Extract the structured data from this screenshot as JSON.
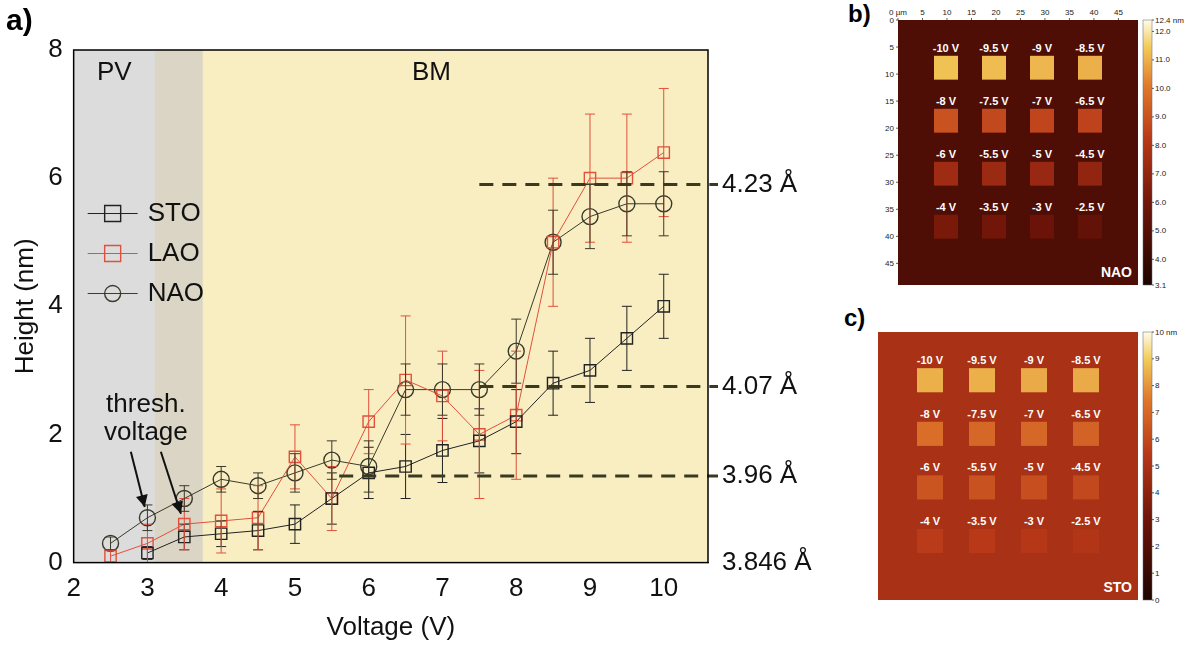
{
  "chart_data": [
    {
      "panel": "a)",
      "type": "line",
      "x_label": "Voltage (V)",
      "y_label": "Height (nm)",
      "x": [
        2.5,
        3,
        3.5,
        4,
        4.5,
        5,
        5.5,
        6,
        6.5,
        7,
        7.5,
        8,
        8.5,
        9,
        9.5,
        10
      ],
      "series": [
        {
          "name": "STO",
          "color": "#222222",
          "marker": "square",
          "values": [
            null,
            0.15,
            0.4,
            0.45,
            0.5,
            0.6,
            1.0,
            1.4,
            1.5,
            1.75,
            1.9,
            2.2,
            2.8,
            3.0,
            3.5,
            4.0
          ],
          "errors": [
            null,
            0.1,
            0.2,
            0.2,
            0.3,
            0.3,
            0.4,
            0.4,
            0.5,
            0.5,
            0.5,
            0.5,
            0.5,
            0.5,
            0.5,
            0.5
          ]
        },
        {
          "name": "LAO",
          "color": "#e0503c",
          "marker": "square",
          "values": [
            0.1,
            0.3,
            0.6,
            0.65,
            0.7,
            1.65,
            1.0,
            2.2,
            2.85,
            2.6,
            2.0,
            2.3,
            5.0,
            6.0,
            6.0,
            6.4
          ],
          "errors": [
            0.1,
            0.3,
            0.4,
            0.5,
            0.5,
            0.5,
            0.5,
            0.5,
            1.0,
            0.7,
            1.0,
            1.0,
            1.0,
            1.0,
            1.0,
            1.0
          ]
        },
        {
          "name": "NAO",
          "color": "#3a3a2a",
          "marker": "circle",
          "values": [
            0.3,
            0.7,
            1.0,
            1.3,
            1.2,
            1.4,
            1.6,
            1.5,
            2.7,
            2.7,
            2.7,
            3.3,
            5.0,
            5.4,
            5.6,
            5.6
          ],
          "errors": [
            0.1,
            0.2,
            0.2,
            0.2,
            0.2,
            0.3,
            0.3,
            0.4,
            0.4,
            0.4,
            0.4,
            0.5,
            0.5,
            0.5,
            0.5,
            0.5
          ]
        }
      ],
      "xlim": [
        2,
        10.6
      ],
      "xticks": [
        2,
        3,
        4,
        5,
        6,
        7,
        8,
        9,
        10
      ],
      "ylim": [
        0,
        8
      ],
      "yticks": [
        0,
        2,
        4,
        6,
        8
      ],
      "grid": false,
      "legend": "upper left",
      "regions": [
        {
          "label": "PV",
          "range": [
            2,
            3.75
          ],
          "color": "#c4c4c4"
        },
        {
          "label": "BM",
          "range": [
            3.1,
            10.6
          ],
          "color": "#f5e39a"
        }
      ],
      "reference_lines": [
        {
          "label": "4.23 Å",
          "value": 5.9,
          "from": 7.5,
          "line_style": "dashed"
        },
        {
          "label": "4.07 Å",
          "value": 2.75,
          "from": 7.5,
          "line_style": "dashed"
        },
        {
          "label": "3.96 Å",
          "value": 1.35,
          "from": 5.6,
          "line_style": "dashed"
        },
        {
          "label": "3.846 Å",
          "value": 0
        }
      ],
      "annotations": [
        {
          "text": "thresh. voltage",
          "points": [
            {
              "series": "NAO",
              "x": 3
            },
            {
              "series": "LAO",
              "x": 3.5
            }
          ]
        }
      ]
    },
    {
      "panel": "b)",
      "type": "heatmap",
      "label": "NAO",
      "xlim": [
        0,
        49
      ],
      "xticks": [
        {
          "value": 0,
          "label": "0 µm"
        },
        5,
        10,
        15,
        20,
        25,
        30,
        35,
        40,
        45
      ],
      "ylim": [
        0,
        49
      ],
      "yticks": [
        0,
        5,
        10,
        15,
        20,
        25,
        30,
        35,
        40,
        45
      ],
      "background": 4.8,
      "cells": {
        "labels": [
          [
            "-10 V",
            "-9.5 V",
            "-9 V",
            "-8.5 V"
          ],
          [
            "-8 V",
            "-7.5 V",
            "-7 V",
            "-6.5 V"
          ],
          [
            "-6 V",
            "-5.5 V",
            "-5 V",
            "-4.5 V"
          ],
          [
            "-4 V",
            "-3.5 V",
            "-3 V",
            "-2.5 V"
          ]
        ],
        "values": [
          [
            11.3,
            11.2,
            11.1,
            11.0
          ],
          [
            9.0,
            8.7,
            8.6,
            8.5
          ],
          [
            7.4,
            7.3,
            7.2,
            7.0
          ],
          [
            6.2,
            6.0,
            5.8,
            5.5
          ]
        ]
      },
      "colorbar": {
        "range": [
          3.1,
          12.4
        ],
        "ticks": [
          {
            "value": 12.4,
            "label": "12.4 nm"
          },
          {
            "value": 12,
            "label": "12.0"
          },
          {
            "value": 11,
            "label": "11.0"
          },
          {
            "value": 10,
            "label": "10.0"
          },
          {
            "value": 9,
            "label": "9.0"
          },
          {
            "value": 8,
            "label": "8.0"
          },
          {
            "value": 7,
            "label": "7.0"
          },
          {
            "value": 6,
            "label": "6.0"
          },
          {
            "value": 5,
            "label": "5.0"
          },
          {
            "value": 4,
            "label": "4.0"
          },
          {
            "value": 3.1,
            "label": "3.1"
          }
        ]
      }
    },
    {
      "panel": "c)",
      "type": "heatmap",
      "label": "STO",
      "tick_labels": false,
      "background": 5.0,
      "cells": {
        "labels": [
          [
            "-10 V",
            "-9.5 V",
            "-9 V",
            "-8.5 V"
          ],
          [
            "-8 V",
            "-7.5 V",
            "-7 V",
            "-6.5 V"
          ],
          [
            "-6 V",
            "-5.5 V",
            "-5 V",
            "-4.5 V"
          ],
          [
            "-4 V",
            "-3.5 V",
            "-3 V",
            "-2.5 V"
          ]
        ],
        "values": [
          [
            8.5,
            8.5,
            8.4,
            8.4
          ],
          [
            7.2,
            7.0,
            7.0,
            6.8
          ],
          [
            6.4,
            6.3,
            6.2,
            6.0
          ],
          [
            5.6,
            5.5,
            5.4,
            5.3
          ]
        ]
      },
      "colorbar": {
        "range": [
          0,
          10
        ],
        "ticks": [
          {
            "value": 10,
            "label": "10 nm"
          },
          9,
          8,
          7,
          6,
          5,
          4,
          3,
          2,
          1,
          0
        ]
      }
    }
  ]
}
